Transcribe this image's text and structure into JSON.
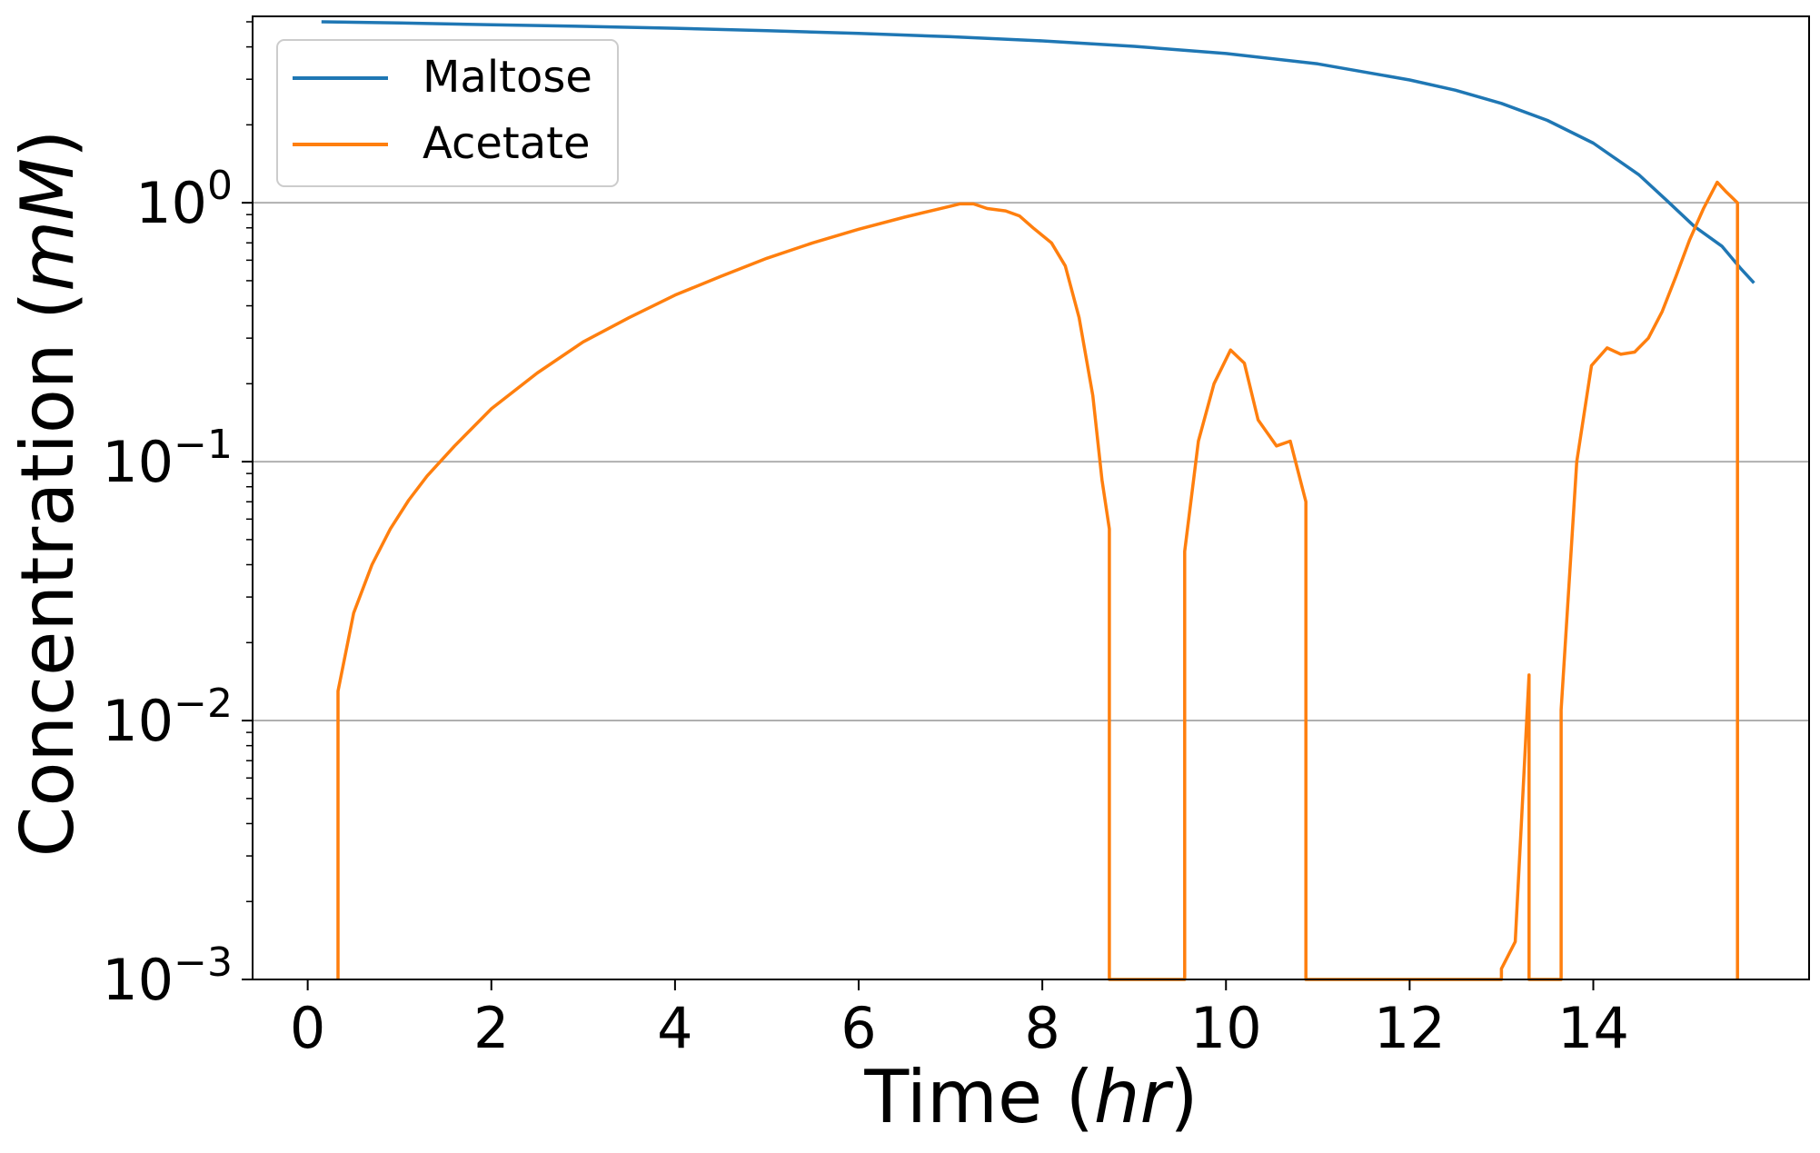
{
  "chart_data": {
    "type": "line",
    "title": "",
    "xlabel_prefix": "Time (",
    "xlabel_unit": "hr",
    "xlabel_suffix": ")",
    "ylabel_prefix": "Concentration (",
    "ylabel_unit": "mM",
    "ylabel_suffix": ")",
    "xlim": [
      -0.6,
      16.35
    ],
    "ylim_log10": [
      -3,
      0.72
    ],
    "yscale": "log",
    "x_ticks": [
      0,
      2,
      4,
      6,
      8,
      10,
      12,
      14
    ],
    "y_ticks_major_exponents": [
      -3,
      -2,
      -1,
      0
    ],
    "y_tick_base": "10",
    "grid": "horizontal major",
    "legend_position": "top-left",
    "legend": [
      "Maltose",
      "Acetate"
    ],
    "colors": {
      "Maltose": "#1f77b4",
      "Acetate": "#ff7f0e"
    },
    "series": [
      {
        "name": "Maltose",
        "color": "#1f77b4",
        "x": [
          0.15,
          1,
          2,
          3,
          4,
          5,
          6,
          7,
          8,
          9,
          10,
          11,
          12,
          12.5,
          13,
          13.5,
          14,
          14.5,
          14.8,
          15.1,
          15.4,
          15.6,
          15.75
        ],
        "y": [
          5.0,
          4.95,
          4.87,
          4.8,
          4.72,
          4.62,
          4.51,
          4.38,
          4.22,
          4.02,
          3.77,
          3.44,
          2.98,
          2.72,
          2.42,
          2.08,
          1.7,
          1.28,
          1.02,
          0.81,
          0.68,
          0.56,
          0.49
        ]
      },
      {
        "name": "Acetate",
        "color": "#ff7f0e",
        "x": [
          0.33,
          0.33,
          0.5,
          0.7,
          0.9,
          1.1,
          1.3,
          1.6,
          2.0,
          2.5,
          3.0,
          3.5,
          4.0,
          4.5,
          5.0,
          5.5,
          6.0,
          6.5,
          7.0,
          7.1,
          7.25,
          7.4,
          7.6,
          7.75,
          7.9,
          8.1,
          8.25,
          8.4,
          8.55,
          8.65,
          8.73,
          8.73,
          9.55,
          9.55,
          9.7,
          9.87,
          10.05,
          10.2,
          10.35,
          10.55,
          10.7,
          10.87,
          10.87,
          13.0,
          13.0,
          13.15,
          13.3,
          13.3,
          13.65,
          13.65,
          13.82,
          13.98,
          14.15,
          14.3,
          14.45,
          14.6,
          14.75,
          14.9,
          15.05,
          15.2,
          15.35,
          15.45,
          15.57,
          15.57
        ],
        "y": [
          0.001,
          0.013,
          0.026,
          0.04,
          0.055,
          0.071,
          0.088,
          0.115,
          0.16,
          0.22,
          0.29,
          0.36,
          0.44,
          0.52,
          0.61,
          0.7,
          0.79,
          0.88,
          0.97,
          0.99,
          0.99,
          0.95,
          0.93,
          0.89,
          0.8,
          0.7,
          0.57,
          0.36,
          0.18,
          0.085,
          0.055,
          0.001,
          0.001,
          0.045,
          0.12,
          0.2,
          0.27,
          0.24,
          0.145,
          0.115,
          0.12,
          0.07,
          0.001,
          0.001,
          0.0011,
          0.0014,
          0.015,
          0.001,
          0.001,
          0.011,
          0.1,
          0.235,
          0.275,
          0.26,
          0.265,
          0.3,
          0.38,
          0.52,
          0.72,
          0.95,
          1.2,
          1.1,
          1.0,
          0.001
        ]
      }
    ]
  }
}
